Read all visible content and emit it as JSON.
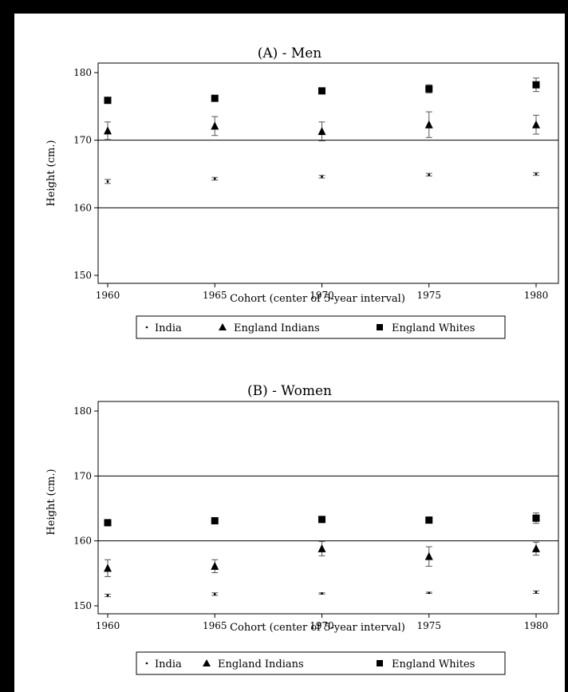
{
  "colors": {
    "frame": "#000000",
    "background": "#ffffff",
    "ink": "#000000",
    "error_bar": "#555555"
  },
  "legend_labels": {
    "india": "India",
    "england_indians": "England Indians",
    "england_whites": "England Whites"
  },
  "chart_data": [
    {
      "type": "scatter",
      "title": "(A) - Men",
      "xlabel": "Cohort (center of 5-year interval)",
      "ylabel": "Height (cm.)",
      "xlim": [
        1960,
        1980
      ],
      "ylim": [
        150,
        180
      ],
      "x_ticks": [
        1960,
        1965,
        1970,
        1975,
        1980
      ],
      "x_tick_labels": [
        "1960",
        "1965",
        "1970",
        "1975",
        "1980"
      ],
      "y_ticks": [
        150,
        160,
        170,
        180
      ],
      "y_tick_labels": [
        "150",
        "160",
        "170",
        "180"
      ],
      "reference_lines": [
        160,
        170
      ],
      "legend_position": "bottom",
      "x": [
        1960,
        1965,
        1970,
        1975,
        1980
      ],
      "series": [
        {
          "name": "India",
          "marker": "dot",
          "values": [
            163.9,
            164.3,
            164.6,
            164.9,
            165.0
          ],
          "err": [
            0.3,
            0.2,
            0.2,
            0.2,
            0.2
          ]
        },
        {
          "name": "England Indians",
          "marker": "triangle",
          "values": [
            171.4,
            172.1,
            171.3,
            172.3,
            172.3
          ],
          "err": [
            1.3,
            1.4,
            1.4,
            1.9,
            1.4
          ]
        },
        {
          "name": "England Whites",
          "marker": "square",
          "values": [
            175.9,
            176.2,
            177.3,
            177.6,
            178.2
          ],
          "err": [
            0.3,
            0.3,
            0.3,
            0.6,
            1.0
          ]
        }
      ]
    },
    {
      "type": "scatter",
      "title": "(B) - Women",
      "xlabel": "Cohort (center of 5-year interval)",
      "ylabel": "Height (cm.)",
      "xlim": [
        1960,
        1980
      ],
      "ylim": [
        150,
        180
      ],
      "x_ticks": [
        1960,
        1965,
        1970,
        1975,
        1980
      ],
      "x_tick_labels": [
        "1960",
        "1965",
        "1970",
        "1975",
        "1980"
      ],
      "y_ticks": [
        150,
        160,
        170,
        180
      ],
      "y_tick_labels": [
        "150",
        "160",
        "170",
        "180"
      ],
      "reference_lines": [
        160,
        170
      ],
      "legend_position": "bottom",
      "x": [
        1960,
        1965,
        1970,
        1975,
        1980
      ],
      "series": [
        {
          "name": "India",
          "marker": "dot",
          "values": [
            151.6,
            151.8,
            151.9,
            152.0,
            152.1
          ],
          "err": [
            0.2,
            0.2,
            0.1,
            0.1,
            0.2
          ]
        },
        {
          "name": "England Indians",
          "marker": "triangle",
          "values": [
            155.8,
            156.1,
            158.8,
            157.6,
            158.8
          ],
          "err": [
            1.3,
            1.0,
            1.1,
            1.5,
            1.0
          ]
        },
        {
          "name": "England Whites",
          "marker": "square",
          "values": [
            162.8,
            163.1,
            163.3,
            163.2,
            163.5
          ],
          "err": [
            0.2,
            0.2,
            0.3,
            0.3,
            0.8
          ]
        }
      ]
    }
  ]
}
